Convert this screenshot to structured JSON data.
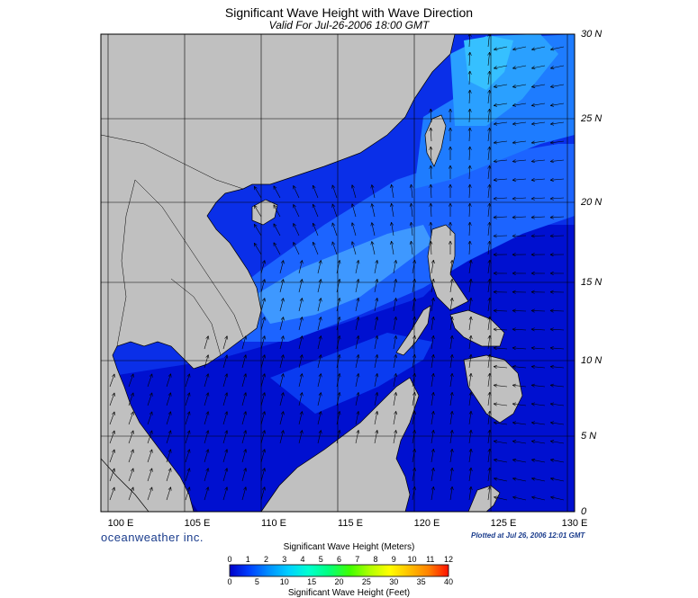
{
  "title": "Significant Wave Height with Wave Direction",
  "subtitle": "Valid For Jul-26-2006 18:00 GMT",
  "brand": "oceanweather inc.",
  "plotted": "Plotted at Jul 26, 2006 12:01 GMT",
  "map": {
    "lat_labels": [
      "30 N",
      "25 N",
      "20 N",
      "15 N",
      "10 N",
      "5 N",
      "0"
    ],
    "lon_labels": [
      "100 E",
      "105 E",
      "110 E",
      "115 E",
      "120 E",
      "125 E",
      "130 E"
    ],
    "lon_range": [
      99,
      130
    ],
    "lat_range": [
      0,
      30
    ],
    "land_color": "#c0c0c0",
    "grid": true
  },
  "colorbar": {
    "title_meters": "Significant Wave Height (Meters)",
    "title_feet": "Significant Wave Height (Feet)",
    "meters_ticks": [
      "0",
      "1",
      "2",
      "3",
      "4",
      "5",
      "6",
      "7",
      "8",
      "9",
      "10",
      "11",
      "12"
    ],
    "feet_ticks": [
      "0",
      "5",
      "10",
      "15",
      "20",
      "25",
      "30",
      "35",
      "40"
    ],
    "colors": [
      "#0000c8",
      "#0040ff",
      "#0080ff",
      "#00c0ff",
      "#00ffe0",
      "#00ff80",
      "#40ff00",
      "#c0ff00",
      "#ffff00",
      "#ffc000",
      "#ff8000",
      "#ff2000"
    ]
  }
}
